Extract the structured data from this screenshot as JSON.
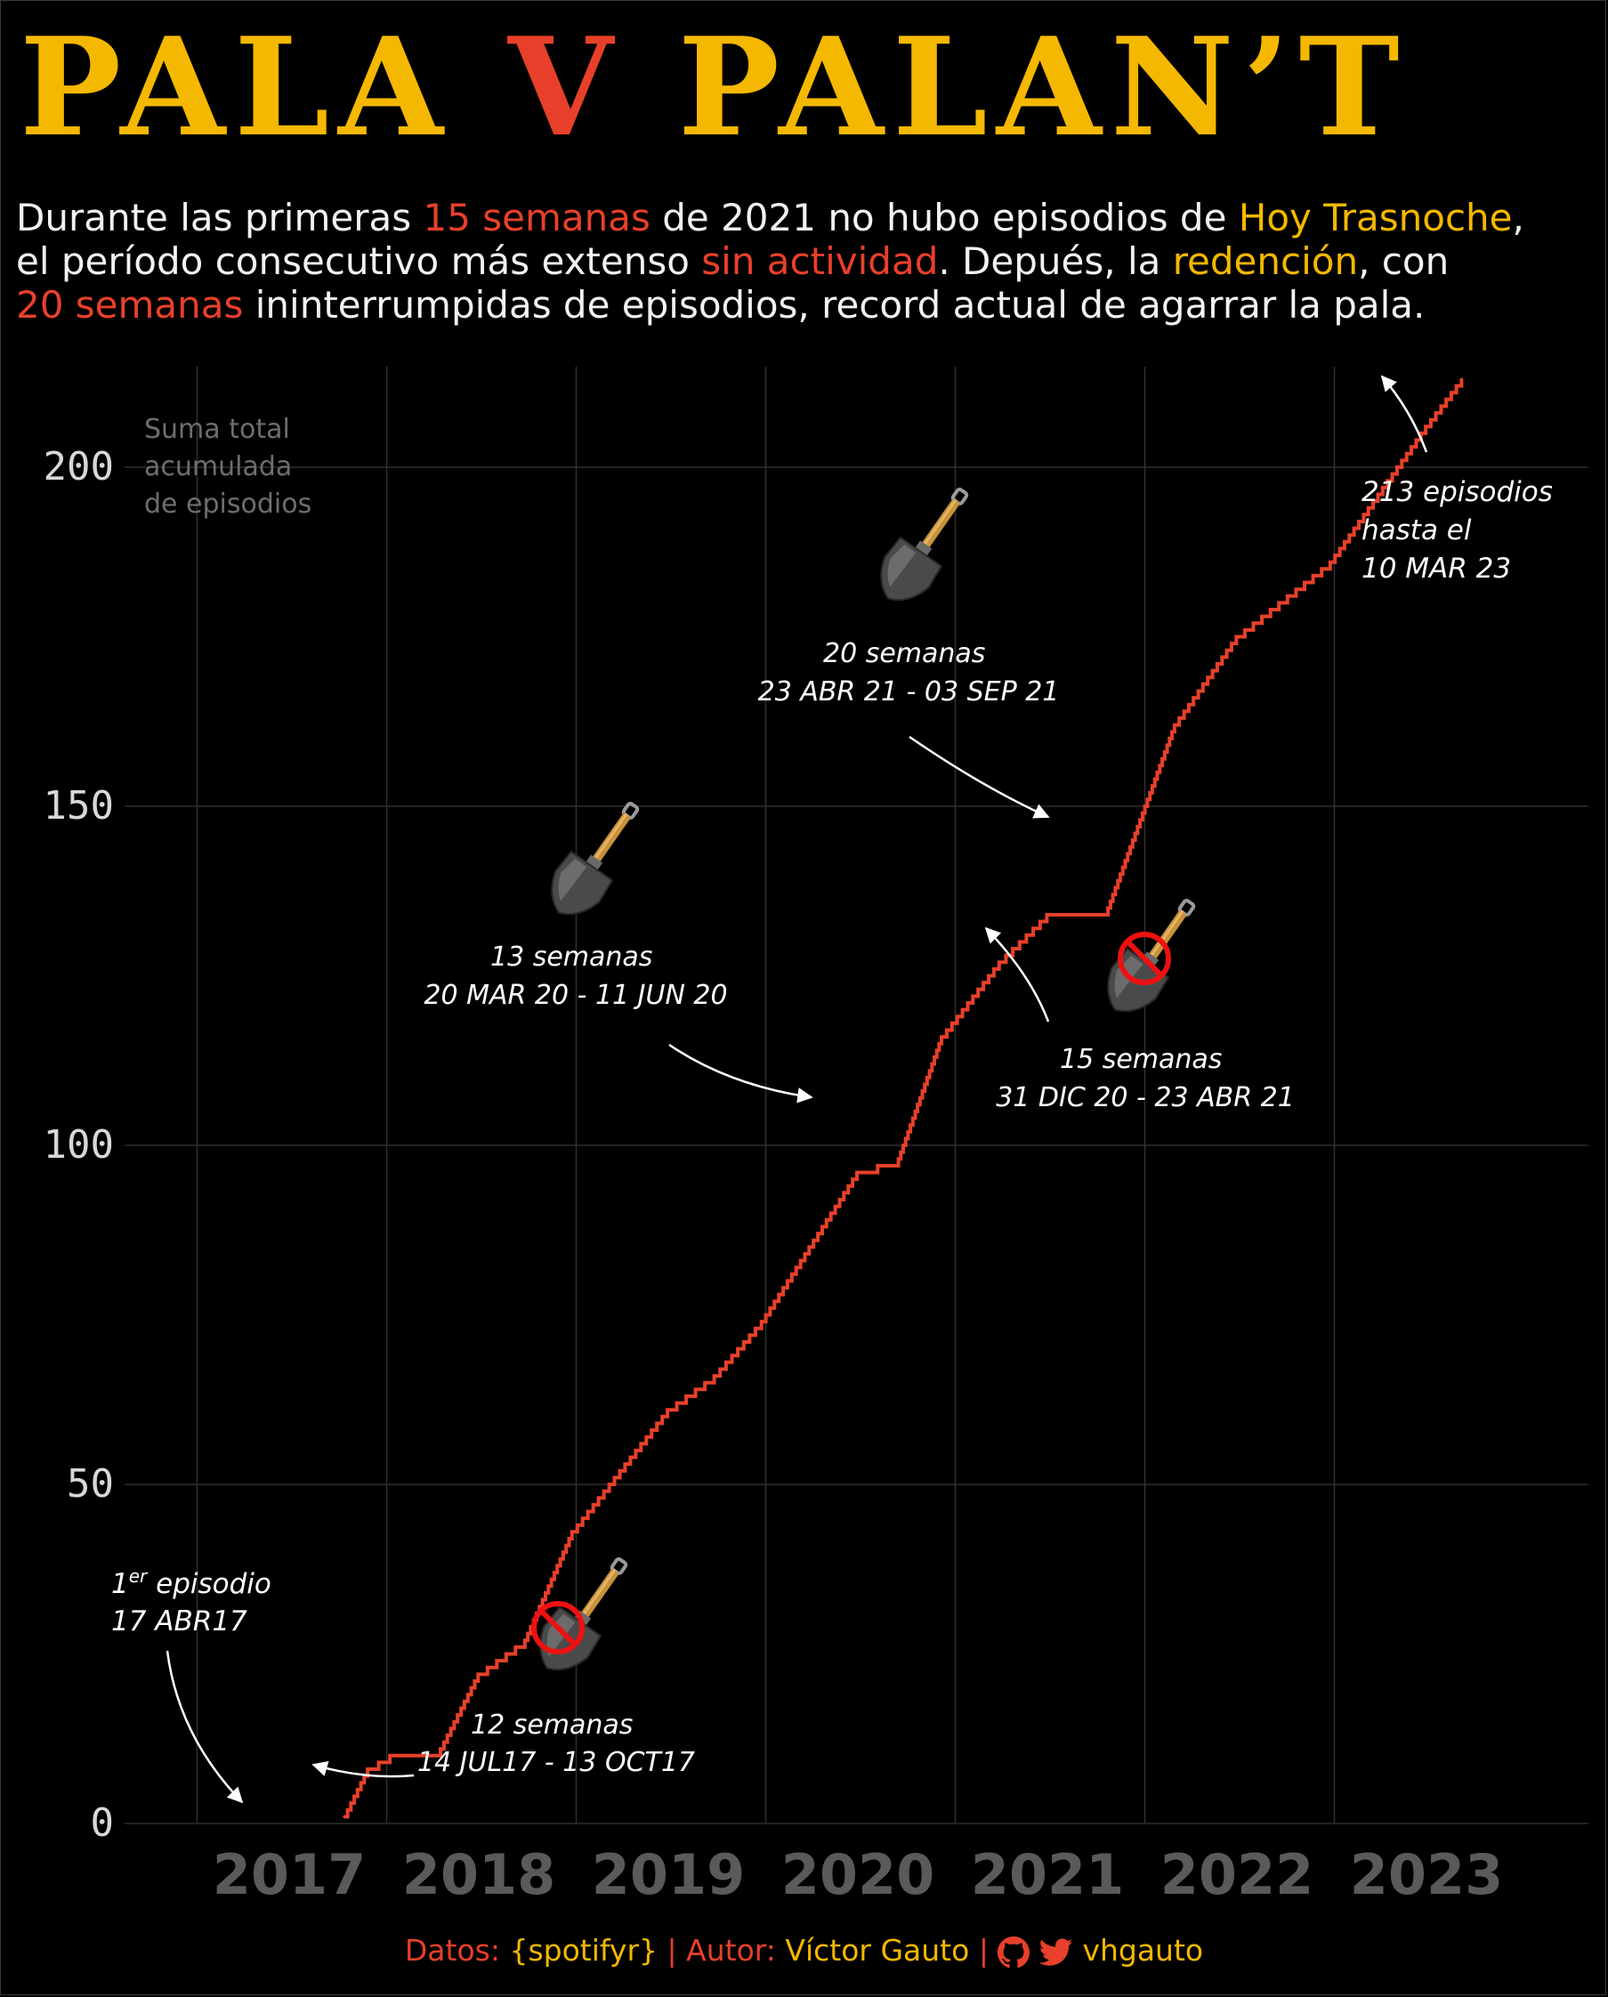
{
  "title": {
    "part1": "PALA",
    "part2": "V",
    "part3": "PALAN’T"
  },
  "subtitle": {
    "s1": "Durante las primeras ",
    "h1": "15 semanas",
    "s2": " de 2021 no hubo episodios de ",
    "h2": "Hoy Trasnoche",
    "s3": ",",
    "s4": "el período consecutivo más extenso ",
    "h3": "sin actividad",
    "s5": ". Depués, la ",
    "h4": "redención",
    "s6": ", con",
    "h5": "20 semanas",
    "s7": " ininterrumpidas de episodios, record actual de agarrar la pala."
  },
  "colors": {
    "background": "#000000",
    "line": "#e8402a",
    "accent_yellow": "#f5b800",
    "accent_red": "#e8402a",
    "grid": "#2f2f2f",
    "axis_x_labels": "#5a5a5a",
    "axis_y_labels": "#d8d8d8",
    "no_sign": "#ee1111"
  },
  "chart_data": {
    "type": "line",
    "step": true,
    "title": "",
    "ylabel": "Suma total acumulada de episodios",
    "xlabel": "",
    "x_ticks": [
      "2017",
      "2018",
      "2019",
      "2020",
      "2021",
      "2022",
      "2023"
    ],
    "y_ticks": [
      "0",
      "50",
      "100",
      "150",
      "200"
    ],
    "xlim": [
      "2016-04-01",
      "2023-10-01"
    ],
    "ylim": [
      0,
      215
    ],
    "grid": true,
    "series": [
      {
        "values": [
          {
            "x": "2017-04-17",
            "y": 1
          },
          {
            "x": "2017-06-01",
            "y": 8
          },
          {
            "x": "2017-07-14",
            "y": 10
          },
          {
            "x": "2017-10-13",
            "y": 10
          },
          {
            "x": "2017-12-31",
            "y": 22
          },
          {
            "x": "2018-03-31",
            "y": 27
          },
          {
            "x": "2018-06-30",
            "y": 43
          },
          {
            "x": "2018-12-31",
            "y": 61
          },
          {
            "x": "2019-03-31",
            "y": 66
          },
          {
            "x": "2019-06-30",
            "y": 74
          },
          {
            "x": "2019-12-31",
            "y": 96
          },
          {
            "x": "2020-03-20",
            "y": 98
          },
          {
            "x": "2020-06-11",
            "y": 116
          },
          {
            "x": "2020-09-30",
            "y": 127
          },
          {
            "x": "2020-12-31",
            "y": 134
          },
          {
            "x": "2021-04-23",
            "y": 134
          },
          {
            "x": "2021-09-03",
            "y": 162
          },
          {
            "x": "2021-12-31",
            "y": 175
          },
          {
            "x": "2022-06-30",
            "y": 186
          },
          {
            "x": "2022-12-31",
            "y": 206
          },
          {
            "x": "2023-03-10",
            "y": 213
          }
        ]
      }
    ],
    "annotations": [
      {
        "id": "a1",
        "line1": "1",
        "line1_sup": "er",
        "line1_rest": " episodio",
        "line2": "17 ABR17"
      },
      {
        "id": "a2",
        "line1": "12 semanas",
        "line2": "14 JUL17 - 13 OCT17",
        "icon": "shovel-no"
      },
      {
        "id": "a3",
        "line1": "13 semanas",
        "line2": "20 MAR 20 - 11 JUN 20",
        "icon": "shovel"
      },
      {
        "id": "a4",
        "line1": "15 semanas",
        "line2": "31 DIC 20 - 23 ABR 21",
        "icon": "shovel-no"
      },
      {
        "id": "a5",
        "line1": "20 semanas",
        "line2": "23 ABR 21 - 03 SEP 21",
        "icon": "shovel"
      },
      {
        "id": "a6",
        "line1": "213 episodios",
        "line2": "hasta el",
        "line3": "10 MAR 23"
      }
    ]
  },
  "caption": {
    "datos_label": "Datos:",
    "datos_value": "{spotifyr}",
    "sep1": "|",
    "autor_label": "Autor:",
    "autor_value": "Víctor Gauto",
    "sep2": "|",
    "handle": "vhgauto",
    "icons": [
      "github-icon",
      "twitter-icon"
    ]
  }
}
